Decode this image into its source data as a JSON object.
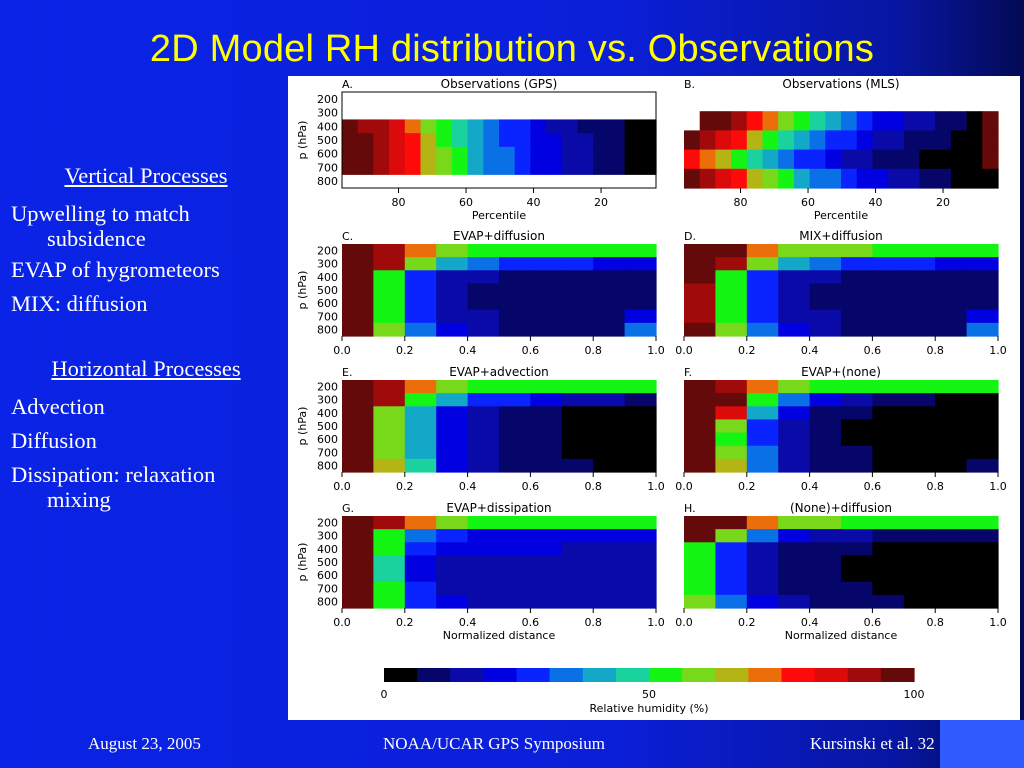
{
  "slide": {
    "title": "2D Model RH distribution vs. Observations",
    "footer_left": "August 23, 2005",
    "footer_center": "NOAA/UCAR GPS Symposium",
    "footer_right": "Kursinski et al. 32"
  },
  "left_text": {
    "vertical_header": "Vertical Processes",
    "vertical_items": [
      "Upwelling to match",
      "subsidence",
      "EVAP of hygrometeors",
      "MIX: diffusion"
    ],
    "horizontal_header": "Horizontal Processes",
    "horizontal_items": [
      "Advection",
      "Diffusion",
      "Dissipation: relaxation",
      "mixing"
    ]
  },
  "colors": {
    "title": "#ffff00",
    "background": "#0b1fd8",
    "colormap": [
      "#000000",
      "#06066a",
      "#0a0aa8",
      "#0000e0",
      "#0a24ff",
      "#0a70e6",
      "#14a8c8",
      "#1ad29e",
      "#14f514",
      "#78d81a",
      "#b4b414",
      "#eb6e0a",
      "#ff0a0a",
      "#dc0a0a",
      "#a00a0a",
      "#640a0a"
    ]
  },
  "chart_data": [
    {
      "type": "heatmap",
      "label": "A.",
      "title": "Observations (GPS)",
      "ylabel": "p (hPa)",
      "xlabel": "Percentile",
      "yticks": [
        "200",
        "300",
        "400",
        "500",
        "600",
        "700",
        "800"
      ],
      "xticks": [
        "80",
        "60",
        "40",
        "20"
      ],
      "cols": 20,
      "rows": 7,
      "values": [
        [
          null,
          null,
          null,
          null,
          null,
          null,
          null,
          null,
          null,
          null,
          null,
          null,
          null,
          null,
          null,
          null,
          null,
          null,
          null,
          null
        ],
        [
          null,
          null,
          null,
          null,
          null,
          null,
          null,
          null,
          null,
          null,
          null,
          null,
          null,
          null,
          null,
          null,
          null,
          null,
          null,
          null
        ],
        [
          97,
          93,
          89,
          82,
          72,
          62,
          54,
          47,
          40,
          35,
          30,
          26,
          22,
          18,
          15,
          12,
          9,
          7,
          5,
          3
        ],
        [
          98,
          95,
          90,
          84,
          75,
          65,
          56,
          49,
          42,
          36,
          31,
          27,
          23,
          19,
          16,
          13,
          10,
          8,
          5,
          3
        ],
        [
          99,
          96,
          91,
          85,
          77,
          68,
          58,
          50,
          43,
          37,
          32,
          28,
          24,
          20,
          17,
          14,
          11,
          8,
          6,
          4
        ],
        [
          98,
          95,
          90,
          84,
          76,
          67,
          58,
          50,
          43,
          37,
          32,
          28,
          24,
          20,
          17,
          14,
          11,
          8,
          6,
          4
        ],
        [
          null,
          null,
          null,
          null,
          null,
          null,
          null,
          null,
          null,
          null,
          null,
          null,
          null,
          null,
          null,
          null,
          null,
          null,
          null,
          null
        ]
      ]
    },
    {
      "type": "heatmap",
      "label": "B.",
      "title": "Observations (MLS)",
      "ylabel": "",
      "xlabel": "Percentile",
      "yticks": [],
      "xticks": [
        "80",
        "60",
        "40",
        "20"
      ],
      "cols": 20,
      "rows": 5,
      "values": [
        [
          null,
          null,
          null,
          null,
          null,
          null,
          null,
          null,
          null,
          null,
          null,
          null,
          null,
          null,
          null,
          null,
          null,
          null,
          null,
          null
        ],
        [
          null,
          99,
          94,
          88,
          80,
          70,
          60,
          50,
          44,
          38,
          33,
          28,
          24,
          20,
          16,
          13,
          10,
          7,
          5,
          96
        ],
        [
          96,
          91,
          84,
          76,
          66,
          56,
          46,
          40,
          34,
          29,
          25,
          21,
          18,
          15,
          12,
          9,
          7,
          5,
          3,
          96
        ],
        [
          78,
          72,
          64,
          56,
          48,
          42,
          36,
          30,
          26,
          22,
          18,
          15,
          12,
          10,
          8,
          6,
          4,
          3,
          2,
          96
        ],
        [
          99,
          93,
          86,
          78,
          68,
          58,
          50,
          43,
          37,
          32,
          27,
          23,
          19,
          16,
          13,
          10,
          8,
          6,
          4,
          2
        ]
      ]
    },
    {
      "type": "heatmap",
      "label": "C.",
      "title": "EVAP+diffusion",
      "ylabel": "p (hPa)",
      "xlabel": "",
      "yticks": [
        "200",
        "300",
        "400",
        "500",
        "600",
        "700",
        "800"
      ],
      "xticks": [
        "0.0",
        "0.2",
        "0.4",
        "0.6",
        "0.8",
        "1.0"
      ],
      "cols": 10,
      "rows": 7,
      "values": [
        [
          99,
          90,
          70,
          58,
          56,
          56,
          55,
          55,
          55,
          54
        ],
        [
          99,
          92,
          60,
          40,
          33,
          30,
          28,
          26,
          24,
          22
        ],
        [
          99,
          55,
          30,
          18,
          14,
          12,
          10,
          9,
          8,
          8
        ],
        [
          99,
          53,
          28,
          16,
          12,
          10,
          9,
          8,
          7,
          8
        ],
        [
          99,
          54,
          28,
          16,
          12,
          10,
          9,
          8,
          7,
          12
        ],
        [
          99,
          56,
          30,
          18,
          13,
          11,
          10,
          9,
          8,
          24
        ],
        [
          99,
          58,
          32,
          20,
          14,
          12,
          11,
          10,
          9,
          32
        ]
      ]
    },
    {
      "type": "heatmap",
      "label": "D.",
      "title": "MIX+diffusion",
      "ylabel": "",
      "xlabel": "",
      "yticks": [],
      "xticks": [
        "0.0",
        "0.2",
        "0.4",
        "0.6",
        "0.8",
        "1.0"
      ],
      "cols": 10,
      "rows": 7,
      "values": [
        [
          99,
          94,
          72,
          60,
          58,
          57,
          56,
          56,
          55,
          55
        ],
        [
          99,
          92,
          60,
          40,
          33,
          30,
          28,
          26,
          24,
          22
        ],
        [
          96,
          55,
          30,
          18,
          14,
          12,
          10,
          9,
          8,
          8
        ],
        [
          90,
          53,
          28,
          16,
          12,
          10,
          9,
          8,
          7,
          8
        ],
        [
          88,
          54,
          28,
          16,
          12,
          10,
          9,
          8,
          7,
          12
        ],
        [
          92,
          56,
          30,
          18,
          13,
          11,
          10,
          9,
          8,
          24
        ],
        [
          97,
          58,
          32,
          20,
          14,
          12,
          11,
          10,
          9,
          32
        ]
      ]
    },
    {
      "type": "heatmap",
      "label": "E.",
      "title": "EVAP+advection",
      "ylabel": "p (hPa)",
      "xlabel": "",
      "yticks": [
        "200",
        "300",
        "400",
        "500",
        "600",
        "700",
        "800"
      ],
      "xticks": [
        "0.0",
        "0.2",
        "0.4",
        "0.6",
        "0.8",
        "1.0"
      ],
      "cols": 10,
      "rows": 7,
      "values": [
        [
          99,
          90,
          70,
          58,
          56,
          56,
          55,
          55,
          55,
          54
        ],
        [
          99,
          92,
          55,
          38,
          30,
          26,
          22,
          18,
          14,
          10
        ],
        [
          99,
          60,
          40,
          22,
          16,
          12,
          8,
          6,
          4,
          3
        ],
        [
          99,
          58,
          38,
          20,
          14,
          10,
          7,
          5,
          3,
          2
        ],
        [
          99,
          58,
          38,
          20,
          14,
          10,
          7,
          5,
          3,
          2
        ],
        [
          99,
          62,
          40,
          22,
          15,
          11,
          8,
          6,
          4,
          3
        ],
        [
          99,
          66,
          44,
          24,
          16,
          12,
          9,
          7,
          5,
          4
        ]
      ]
    },
    {
      "type": "heatmap",
      "label": "F.",
      "title": "EVAP+(none)",
      "ylabel": "",
      "xlabel": "",
      "yticks": [],
      "xticks": [
        "0.0",
        "0.2",
        "0.4",
        "0.6",
        "0.8",
        "1.0"
      ],
      "cols": 10,
      "rows": 7,
      "values": [
        [
          99,
          92,
          72,
          58,
          56,
          56,
          55,
          55,
          55,
          54
        ],
        [
          99,
          94,
          56,
          34,
          24,
          18,
          12,
          8,
          5,
          3
        ],
        [
          99,
          84,
          40,
          20,
          12,
          8,
          5,
          3,
          2,
          1
        ],
        [
          99,
          58,
          30,
          16,
          10,
          6,
          4,
          2,
          1,
          1
        ],
        [
          99,
          56,
          28,
          14,
          9,
          6,
          4,
          2,
          1,
          1
        ],
        [
          99,
          60,
          32,
          16,
          10,
          7,
          5,
          3,
          2,
          2
        ],
        [
          99,
          66,
          36,
          18,
          12,
          8,
          6,
          4,
          3,
          8
        ]
      ]
    },
    {
      "type": "heatmap",
      "label": "G.",
      "title": "EVAP+dissipation",
      "ylabel": "p (hPa)",
      "xlabel": "Normalized distance",
      "yticks": [
        "200",
        "300",
        "400",
        "500",
        "600",
        "700",
        "800"
      ],
      "xticks": [
        "0.0",
        "0.2",
        "0.4",
        "0.6",
        "0.8",
        "1.0"
      ],
      "cols": 10,
      "rows": 7,
      "values": [
        [
          99,
          92,
          70,
          58,
          56,
          56,
          55,
          55,
          55,
          54
        ],
        [
          99,
          56,
          35,
          25,
          24,
          23,
          23,
          22,
          22,
          22
        ],
        [
          99,
          50,
          28,
          20,
          20,
          19,
          19,
          18,
          18,
          18
        ],
        [
          99,
          48,
          24,
          16,
          16,
          16,
          16,
          16,
          16,
          16
        ],
        [
          99,
          48,
          24,
          16,
          16,
          16,
          16,
          16,
          16,
          16
        ],
        [
          99,
          50,
          28,
          18,
          17,
          17,
          17,
          17,
          17,
          17
        ],
        [
          99,
          54,
          30,
          20,
          18,
          18,
          18,
          18,
          18,
          18
        ]
      ]
    },
    {
      "type": "heatmap",
      "label": "H.",
      "title": "(None)+diffusion",
      "ylabel": "",
      "xlabel": "Normalized distance",
      "yticks": [],
      "xticks": [
        "0.0",
        "0.2",
        "0.4",
        "0.6",
        "0.8",
        "1.0"
      ],
      "cols": 10,
      "rows": 7,
      "values": [
        [
          99,
          94,
          72,
          60,
          58,
          56,
          55,
          55,
          55,
          54
        ],
        [
          99,
          60,
          35,
          24,
          18,
          14,
          12,
          11,
          10,
          9
        ],
        [
          56,
          30,
          18,
          12,
          9,
          7,
          6,
          5,
          4,
          3
        ],
        [
          54,
          28,
          16,
          10,
          8,
          6,
          5,
          4,
          3,
          3
        ],
        [
          54,
          28,
          16,
          10,
          8,
          6,
          5,
          4,
          3,
          3
        ],
        [
          56,
          30,
          18,
          12,
          9,
          7,
          6,
          5,
          4,
          4
        ],
        [
          60,
          34,
          22,
          14,
          10,
          8,
          7,
          6,
          5,
          4
        ]
      ]
    }
  ],
  "colorbar": {
    "label": "Relative humidity (%)",
    "ticks": [
      "0",
      "50",
      "100"
    ]
  }
}
